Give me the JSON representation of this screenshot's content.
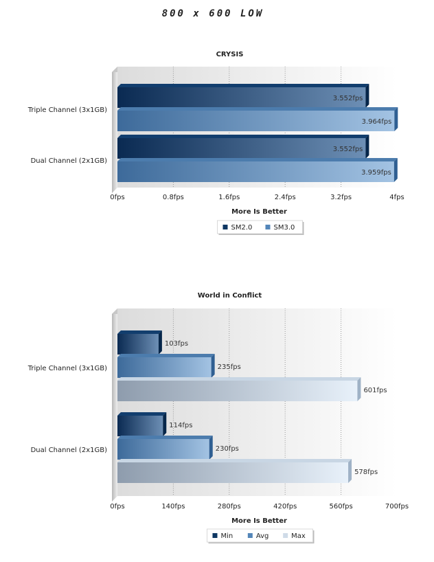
{
  "page": {
    "title": "800 x 600 LOW"
  },
  "chart_data": [
    {
      "type": "bar",
      "orientation": "horizontal",
      "title": "CRYSIS",
      "xlabel": "More Is Better",
      "ylabel": "",
      "categories": [
        "Triple Channel (3x1GB)",
        "Dual Channel (2x1GB)"
      ],
      "series": [
        {
          "name": "SM2.0",
          "values": [
            3.552,
            3.552
          ],
          "labels": [
            "3.552fps",
            "3.552fps"
          ]
        },
        {
          "name": "SM3.0",
          "values": [
            3.964,
            3.959
          ],
          "labels": [
            "3.964fps",
            "3.959fps"
          ]
        }
      ],
      "xlim": [
        0,
        4
      ],
      "xticks": [
        "0fps",
        "0.8fps",
        "1.6fps",
        "2.4fps",
        "3.2fps",
        "4fps"
      ],
      "grid": true,
      "legend": "bottom-center",
      "label_position": "inside-end"
    },
    {
      "type": "bar",
      "orientation": "horizontal",
      "title": "World in Conflict",
      "xlabel": "More Is Better",
      "ylabel": "",
      "categories": [
        "Triple Channel (3x1GB)",
        "Dual Channel (2x1GB)"
      ],
      "series": [
        {
          "name": "Min",
          "values": [
            103,
            114
          ],
          "labels": [
            "103fps",
            "114fps"
          ]
        },
        {
          "name": "Avg",
          "values": [
            235,
            230
          ],
          "labels": [
            "235fps",
            "230fps"
          ]
        },
        {
          "name": "Max",
          "values": [
            601,
            578
          ],
          "labels": [
            "601fps",
            "578fps"
          ]
        }
      ],
      "xlim": [
        0,
        700
      ],
      "xticks": [
        "0fps",
        "140fps",
        "280fps",
        "420fps",
        "560fps",
        "700fps"
      ],
      "grid": true,
      "legend": "bottom-center",
      "label_position": "outside-end"
    }
  ],
  "colors": {
    "dark_blue": "#0e3763",
    "mid_blue": "#5486b9",
    "light_gray_blue": "#cfdbe8"
  }
}
